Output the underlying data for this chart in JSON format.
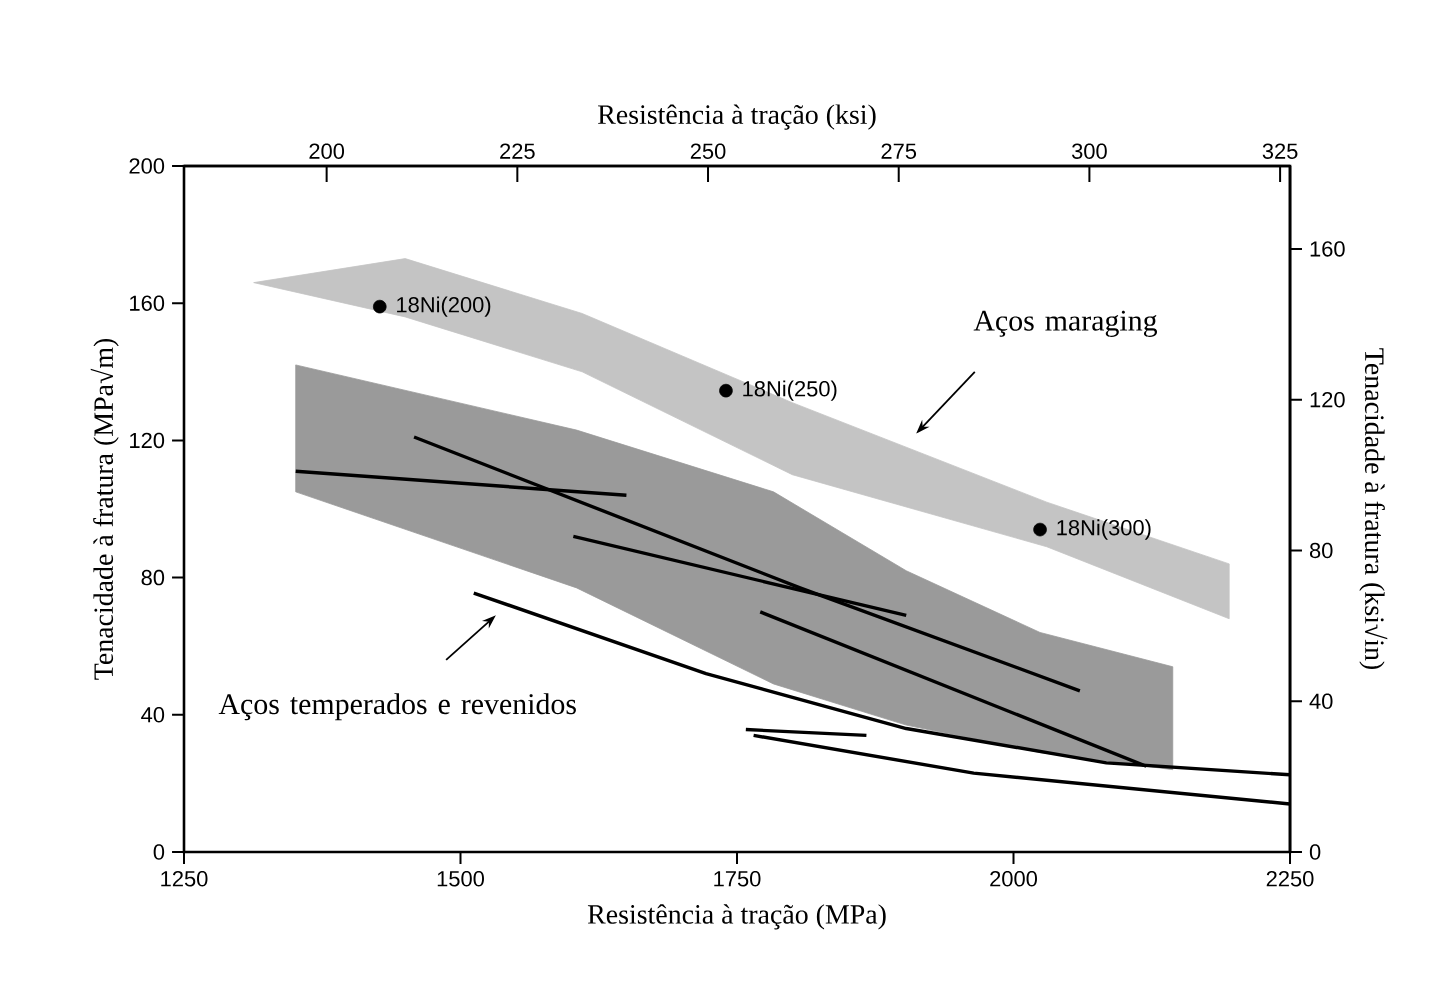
{
  "chart_data": {
    "type": "line",
    "xlabel": "Resistência à tração (MPa)",
    "ylabel": "Tenacidade à fratura (MPa√m)",
    "x2label": "Resistência à tração (ksi)",
    "y2label": "Tenacidade à fratura (ksi√in)",
    "xlim": [
      1250,
      2250
    ],
    "xticks": [
      1250,
      1500,
      1750,
      2000,
      2250
    ],
    "ylim": [
      0,
      200
    ],
    "yticks": [
      0,
      40,
      80,
      120,
      160,
      200
    ],
    "x2lim": [
      181.3,
      326.3
    ],
    "x2ticks": [
      200,
      225,
      250,
      275,
      300,
      325
    ],
    "y2lim": [
      0,
      182
    ],
    "y2ticks": [
      0,
      40,
      80,
      120,
      160
    ],
    "series": [
      {
        "type": "area",
        "color": "#c4c4c4",
        "x": [
          1313,
          1450,
          1610,
          1800,
          2030,
          2195
        ],
        "values": [
          null,
          null,
          null,
          null,
          null,
          null
        ],
        "lower": [
          166,
          156,
          140,
          110,
          89,
          68
        ],
        "upper": [
          166,
          173,
          157,
          131,
          102,
          84
        ]
      },
      {
        "type": "area",
        "color": "#9a9a9a",
        "x": [
          1351,
          1605,
          1783,
          1903,
          2024,
          2144
        ],
        "values": [
          null,
          null,
          null,
          null,
          null,
          null
        ],
        "lower": [
          105,
          77,
          49,
          37,
          29,
          24
        ],
        "upper": [
          142,
          123,
          105,
          82,
          64,
          54
        ]
      },
      {
        "color": "#000000",
        "x": [
          1351,
          1650
        ],
        "values": [
          111,
          104
        ]
      },
      {
        "color": "#000000",
        "x": [
          1458,
          1807,
          2060
        ],
        "values": [
          121,
          77,
          47
        ]
      },
      {
        "color": "#000000",
        "x": [
          1602,
          1903
        ],
        "values": [
          92,
          69
        ]
      },
      {
        "color": "#000000",
        "x": [
          1771,
          2120
        ],
        "values": [
          70,
          25
        ]
      },
      {
        "color": "#000000",
        "x": [
          1512,
          1722,
          1903,
          2084,
          2250
        ],
        "values": [
          75.5,
          52,
          36,
          26,
          22.5
        ]
      },
      {
        "color": "#000000",
        "x": [
          1758,
          1867
        ],
        "values": [
          35.7,
          34
        ]
      },
      {
        "color": "#000000",
        "x": [
          1765,
          1964,
          2250
        ],
        "values": [
          34,
          23,
          14
        ]
      },
      {
        "type": "scatter",
        "color": "#000000",
        "marker": "circle",
        "x": [
          1427,
          1740,
          2024
        ],
        "values": [
          159,
          134.5,
          94
        ]
      }
    ],
    "annotations": [
      {
        "text": "18Ni(200)",
        "x": 1427,
        "y": 159
      },
      {
        "text": "18Ni(250)",
        "x": 1740,
        "y": 134.5
      },
      {
        "text": "18Ni(300)",
        "x": 2024,
        "y": 94
      },
      "Aços maraging",
      "Aços temperados e revenidos"
    ]
  }
}
